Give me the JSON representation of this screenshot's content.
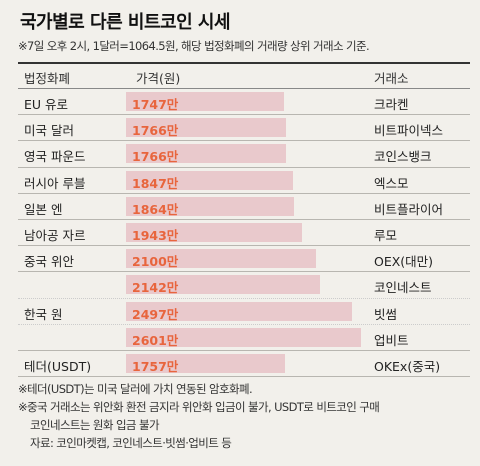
{
  "title": "국가별로 다른 비트코인 시세",
  "subtitle": "※7일 오후 2시, 1달러=1064.5원, 해당 법정화폐의 거래량 상위 거래소 기준.",
  "headers": {
    "currency": "법정화폐",
    "price": "가격(원)",
    "exchange": "거래소"
  },
  "chart_data": {
    "type": "bar",
    "unit": "만",
    "xlim": [
      0,
      2700
    ],
    "rows": [
      {
        "currency": "EU 유로",
        "value": 1747,
        "label": "1747만",
        "exchange": "크라켄"
      },
      {
        "currency": "미국 달러",
        "value": 1766,
        "label": "1766만",
        "exchange": "비트파이넥스"
      },
      {
        "currency": "영국 파운드",
        "value": 1766,
        "label": "1766만",
        "exchange": "코인스뱅크"
      },
      {
        "currency": "러시아 루블",
        "value": 1847,
        "label": "1847만",
        "exchange": "엑스모"
      },
      {
        "currency": "일본 엔",
        "value": 1864,
        "label": "1864만",
        "exchange": "비트플라이어"
      },
      {
        "currency": "남아공 자르",
        "value": 1943,
        "label": "1943만",
        "exchange": "루모"
      },
      {
        "currency": "중국 위안",
        "value": 2100,
        "label": "2100만",
        "exchange": "OEX(대만)"
      },
      {
        "currency": "",
        "value": 2142,
        "label": "2142만",
        "exchange": "코인네스트"
      },
      {
        "currency": "한국 원",
        "value": 2497,
        "label": "2497만",
        "exchange": "빗썸"
      },
      {
        "currency": "",
        "value": 2601,
        "label": "2601만",
        "exchange": "업비트"
      },
      {
        "currency": "테더(USDT)",
        "value": 1757,
        "label": "1757만",
        "exchange": "OKEx(중국)"
      }
    ]
  },
  "notes": [
    "※테더(USDT)는 미국 달러에 가치 연동된 암호화폐.",
    "※중국 거래소는 위안화 환전 금지라 위안화 입금이 불가, USDT로 비트코인 구매",
    "코인네스트는 원화 입금 불가"
  ],
  "source": "자료: 코인마켓캡, 코인네스트·빗썸·업비트 등"
}
